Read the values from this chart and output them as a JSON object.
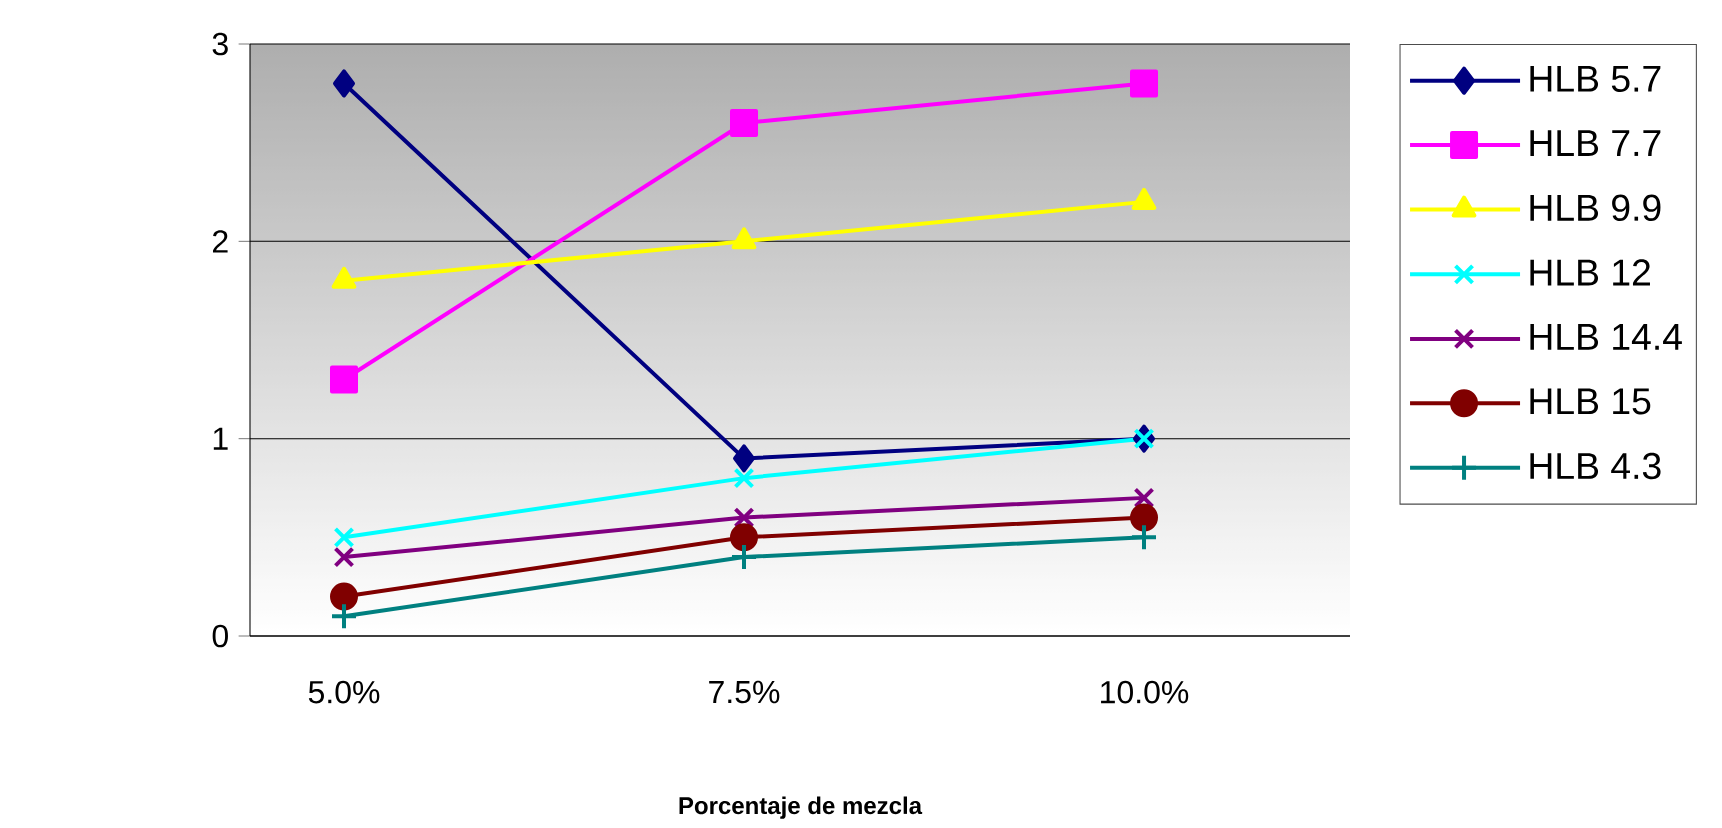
{
  "chart_data": {
    "type": "line",
    "xlabel": "Porcentaje de mezcla",
    "categories": [
      "5.0%",
      "7.5%",
      "10.0%"
    ],
    "ylim": [
      0,
      3
    ],
    "yticks": [
      0,
      1,
      2,
      3
    ],
    "grid": "y",
    "legend": "right",
    "line_style": "solid",
    "series": [
      {
        "name": "HLB 5.7",
        "color": "#000080",
        "marker": "diamond",
        "values": [
          2.8,
          0.9,
          1.0
        ]
      },
      {
        "name": "HLB 7.7",
        "color": "#ff00ff",
        "marker": "square",
        "values": [
          1.3,
          2.6,
          2.8
        ]
      },
      {
        "name": "HLB 9.9",
        "color": "#ffff00",
        "marker": "triangle",
        "values": [
          1.8,
          2.0,
          2.2
        ]
      },
      {
        "name": "HLB 12",
        "color": "#00ffff",
        "marker": "cross",
        "values": [
          0.5,
          0.8,
          1.0
        ]
      },
      {
        "name": "HLB 14.4",
        "color": "#800080",
        "marker": "cross",
        "values": [
          0.4,
          0.6,
          0.7
        ]
      },
      {
        "name": "HLB 15",
        "color": "#800000",
        "marker": "circle",
        "values": [
          0.2,
          0.5,
          0.6
        ]
      },
      {
        "name": "HLB 4.3",
        "color": "#008080",
        "marker": "plus",
        "values": [
          0.1,
          0.4,
          0.5
        ]
      }
    ]
  }
}
